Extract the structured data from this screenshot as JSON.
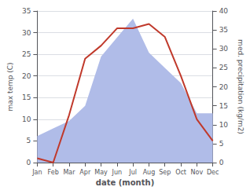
{
  "chart_data": {
    "type": "line",
    "xlabel": "date (month)",
    "ylabel": "max temp (C)",
    "y2label": "med. precipitation (kg/m2)",
    "categories": [
      "Jan",
      "Feb",
      "Mar",
      "Apr",
      "May",
      "Jun",
      "Jul",
      "Aug",
      "Sep",
      "Oct",
      "Nov",
      "Dec"
    ],
    "series": [
      {
        "type": "area",
        "axis": "y2",
        "color": "#b0bce8",
        "values": [
          7,
          9,
          11,
          15,
          28,
          33,
          38,
          29,
          25,
          21,
          13,
          13
        ]
      },
      {
        "type": "line",
        "color": "#c0392b",
        "values": [
          1,
          0,
          11,
          24,
          27,
          31,
          31,
          32,
          29,
          20,
          10,
          5
        ]
      }
    ],
    "ylim": [
      0,
      35
    ],
    "yticks": [
      0,
      5,
      10,
      15,
      20,
      25,
      30,
      35
    ],
    "y2lim": [
      0,
      40
    ],
    "y2ticks": [
      0,
      5,
      10,
      15,
      20,
      25,
      30,
      35,
      40
    ],
    "grid": true
  }
}
